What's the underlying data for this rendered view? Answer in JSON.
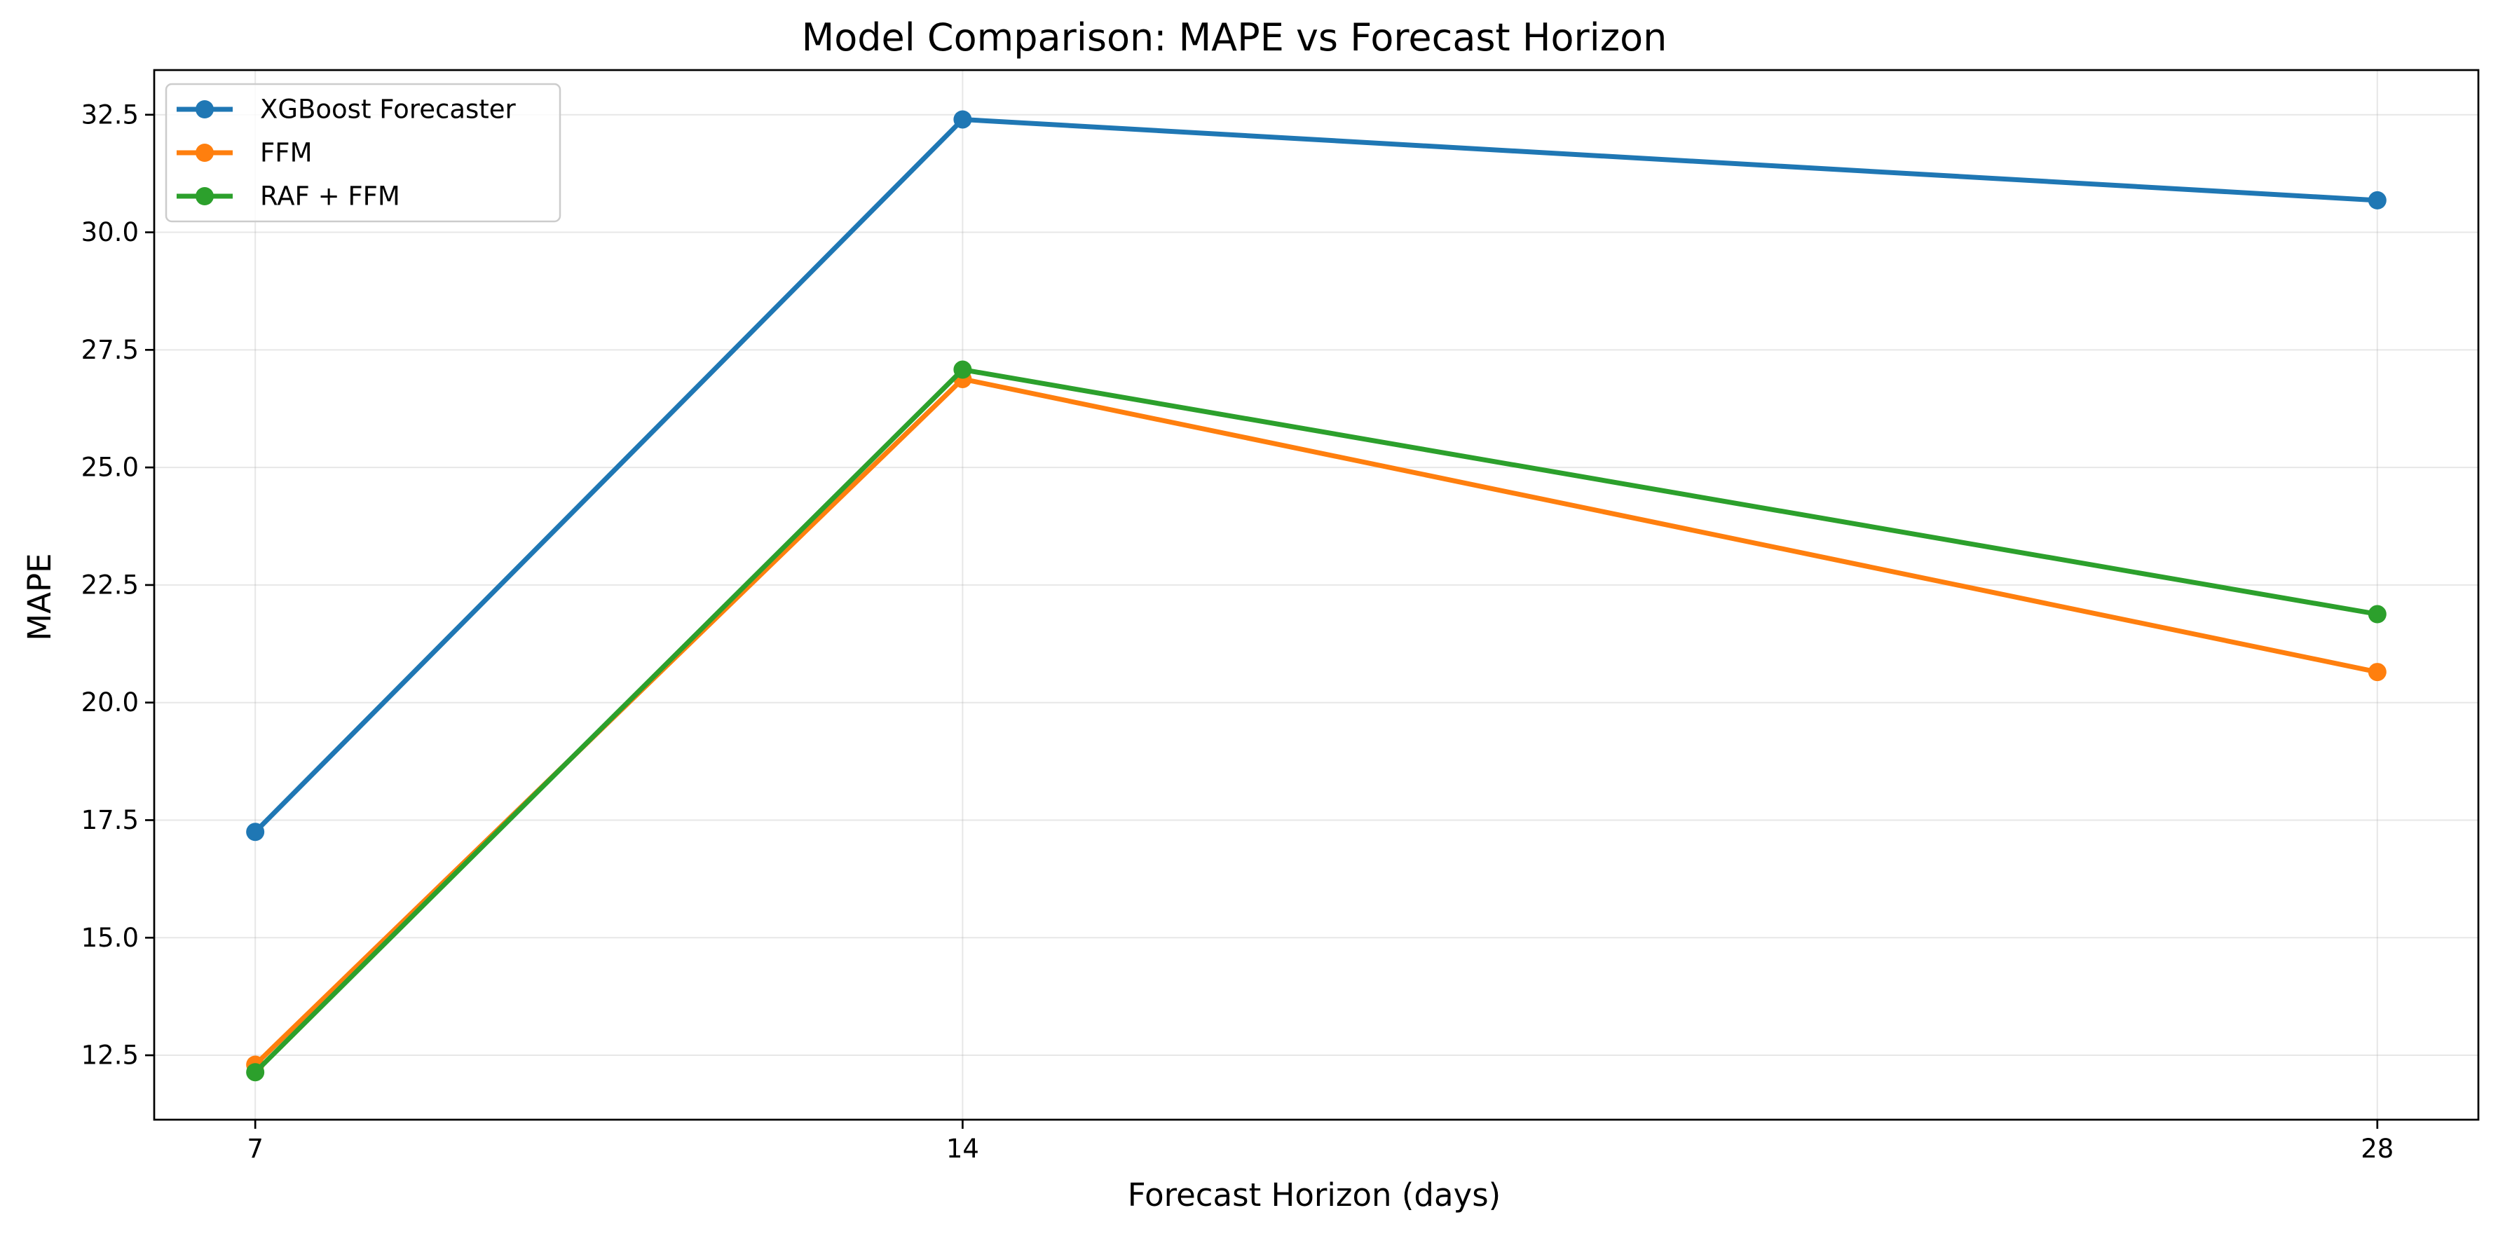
{
  "chart_data": {
    "type": "line",
    "title": "Model Comparison: MAPE vs Forecast Horizon",
    "xlabel": "Forecast Horizon (days)",
    "ylabel": "MAPE",
    "x": [
      7,
      14,
      28
    ],
    "x_ticks": [
      "7",
      "14",
      "28"
    ],
    "y_ticks": [
      "12.5",
      "15.0",
      "17.5",
      "20.0",
      "22.5",
      "25.0",
      "27.5",
      "30.0",
      "32.5"
    ],
    "y_tick_values": [
      12.5,
      15.0,
      17.5,
      20.0,
      22.5,
      25.0,
      27.5,
      30.0,
      32.5
    ],
    "xlim": [
      6.0,
      29.0
    ],
    "ylim": [
      11.13,
      33.45
    ],
    "grid": true,
    "legend_position": "top-left",
    "series": [
      {
        "name": "XGBoost Forecaster",
        "color": "#1f77b4",
        "values": [
          17.25,
          32.4,
          30.68
        ]
      },
      {
        "name": "FFM",
        "color": "#ff7f0e",
        "values": [
          12.3,
          26.88,
          20.65
        ]
      },
      {
        "name": "RAF + FFM",
        "color": "#2ca02c",
        "values": [
          12.14,
          27.08,
          21.88
        ]
      }
    ]
  }
}
